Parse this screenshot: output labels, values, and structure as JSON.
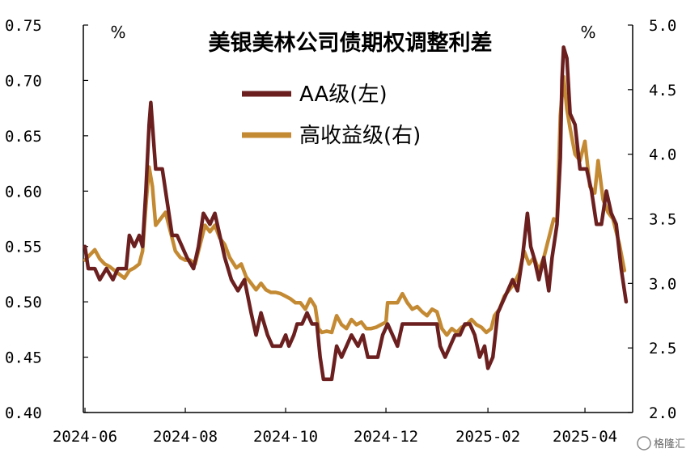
{
  "chart_data": {
    "type": "line",
    "title": "美银美林公司债期权调整利差",
    "left_axis": {
      "unit": "%",
      "ylim": [
        0.4,
        0.75
      ],
      "ticks": [
        "0.40",
        "0.45",
        "0.50",
        "0.55",
        "0.60",
        "0.65",
        "0.70",
        "0.75"
      ]
    },
    "right_axis": {
      "unit": "%",
      "ylim": [
        2.0,
        5.0
      ],
      "ticks": [
        "2.0",
        "2.5",
        "3.0",
        "3.5",
        "4.0",
        "4.5",
        "5.0"
      ]
    },
    "x_ticks": [
      "2024-06",
      "2024-08",
      "2024-10",
      "2024-12",
      "2025-02",
      "2025-04"
    ],
    "x_range": [
      "2024-05-31",
      "2025-04-30"
    ],
    "legend_position": "top-center",
    "grid": false,
    "series": [
      {
        "name": "AA级(左)",
        "axis": "left",
        "color": "#6b1f1f",
        "points": [
          [
            "2024-06-01",
            0.55
          ],
          [
            "2024-06-03",
            0.53
          ],
          [
            "2024-06-07",
            0.53
          ],
          [
            "2024-06-10",
            0.52
          ],
          [
            "2024-06-14",
            0.53
          ],
          [
            "2024-06-18",
            0.52
          ],
          [
            "2024-06-21",
            0.53
          ],
          [
            "2024-06-26",
            0.53
          ],
          [
            "2024-06-28",
            0.56
          ],
          [
            "2024-07-01",
            0.55
          ],
          [
            "2024-07-04",
            0.56
          ],
          [
            "2024-07-06",
            0.55
          ],
          [
            "2024-07-08",
            0.6
          ],
          [
            "2024-07-10",
            0.66
          ],
          [
            "2024-07-11",
            0.68
          ],
          [
            "2024-07-12",
            0.66
          ],
          [
            "2024-07-14",
            0.62
          ],
          [
            "2024-07-18",
            0.62
          ],
          [
            "2024-07-21",
            0.59
          ],
          [
            "2024-07-24",
            0.56
          ],
          [
            "2024-07-27",
            0.56
          ],
          [
            "2024-07-30",
            0.55
          ],
          [
            "2024-08-02",
            0.54
          ],
          [
            "2024-08-06",
            0.53
          ],
          [
            "2024-08-09",
            0.55
          ],
          [
            "2024-08-12",
            0.58
          ],
          [
            "2024-08-16",
            0.57
          ],
          [
            "2024-08-19",
            0.58
          ],
          [
            "2024-08-22",
            0.56
          ],
          [
            "2024-08-25",
            0.54
          ],
          [
            "2024-08-29",
            0.52
          ],
          [
            "2024-09-02",
            0.51
          ],
          [
            "2024-09-06",
            0.52
          ],
          [
            "2024-09-10",
            0.49
          ],
          [
            "2024-09-13",
            0.47
          ],
          [
            "2024-09-16",
            0.49
          ],
          [
            "2024-09-20",
            0.47
          ],
          [
            "2024-09-23",
            0.46
          ],
          [
            "2024-09-28",
            0.46
          ],
          [
            "2024-10-01",
            0.47
          ],
          [
            "2024-10-03",
            0.46
          ],
          [
            "2024-10-06",
            0.47
          ],
          [
            "2024-10-08",
            0.48
          ],
          [
            "2024-10-11",
            0.48
          ],
          [
            "2024-10-14",
            0.49
          ],
          [
            "2024-10-17",
            0.48
          ],
          [
            "2024-10-20",
            0.48
          ],
          [
            "2024-10-22",
            0.45
          ],
          [
            "2024-10-24",
            0.43
          ],
          [
            "2024-10-29",
            0.43
          ],
          [
            "2024-11-01",
            0.46
          ],
          [
            "2024-11-04",
            0.45
          ],
          [
            "2024-11-07",
            0.46
          ],
          [
            "2024-11-10",
            0.47
          ],
          [
            "2024-11-14",
            0.46
          ],
          [
            "2024-11-17",
            0.47
          ],
          [
            "2024-11-20",
            0.45
          ],
          [
            "2024-11-26",
            0.45
          ],
          [
            "2024-11-29",
            0.47
          ],
          [
            "2024-12-02",
            0.48
          ],
          [
            "2024-12-05",
            0.47
          ],
          [
            "2024-12-08",
            0.46
          ],
          [
            "2024-12-11",
            0.48
          ],
          [
            "2024-12-16",
            0.48
          ],
          [
            "2024-12-21",
            0.48
          ],
          [
            "2024-12-26",
            0.48
          ],
          [
            "2025-01-01",
            0.48
          ],
          [
            "2025-01-03",
            0.46
          ],
          [
            "2025-01-06",
            0.45
          ],
          [
            "2025-01-09",
            0.46
          ],
          [
            "2025-01-12",
            0.47
          ],
          [
            "2025-01-15",
            0.47
          ],
          [
            "2025-01-18",
            0.48
          ],
          [
            "2025-01-21",
            0.48
          ],
          [
            "2025-01-24",
            0.47
          ],
          [
            "2025-01-27",
            0.45
          ],
          [
            "2025-01-30",
            0.46
          ],
          [
            "2025-02-01",
            0.44
          ],
          [
            "2025-02-04",
            0.45
          ],
          [
            "2025-02-07",
            0.49
          ],
          [
            "2025-02-10",
            0.5
          ],
          [
            "2025-02-13",
            0.51
          ],
          [
            "2025-02-16",
            0.52
          ],
          [
            "2025-02-19",
            0.51
          ],
          [
            "2025-02-22",
            0.54
          ],
          [
            "2025-02-25",
            0.58
          ],
          [
            "2025-02-27",
            0.55
          ],
          [
            "2025-03-01",
            0.54
          ],
          [
            "2025-03-04",
            0.52
          ],
          [
            "2025-03-07",
            0.54
          ],
          [
            "2025-03-10",
            0.51
          ],
          [
            "2025-03-12",
            0.54
          ],
          [
            "2025-03-15",
            0.57
          ],
          [
            "2025-03-17",
            0.63
          ],
          [
            "2025-03-18",
            0.7
          ],
          [
            "2025-03-19",
            0.73
          ],
          [
            "2025-03-21",
            0.72
          ],
          [
            "2025-03-23",
            0.67
          ],
          [
            "2025-03-26",
            0.66
          ],
          [
            "2025-03-29",
            0.62
          ],
          [
            "2025-04-02",
            0.62
          ],
          [
            "2025-04-05",
            0.6
          ],
          [
            "2025-04-08",
            0.57
          ],
          [
            "2025-04-11",
            0.57
          ],
          [
            "2025-04-14",
            0.6
          ],
          [
            "2025-04-17",
            0.58
          ],
          [
            "2025-04-20",
            0.57
          ],
          [
            "2025-04-23",
            0.53
          ],
          [
            "2025-04-26",
            0.5
          ]
        ]
      },
      {
        "name": "高收益级(右)",
        "axis": "right",
        "color": "#c48a33",
        "points": [
          [
            "2024-06-01",
            3.18
          ],
          [
            "2024-06-04",
            3.22
          ],
          [
            "2024-06-07",
            3.26
          ],
          [
            "2024-06-10",
            3.19
          ],
          [
            "2024-06-13",
            3.15
          ],
          [
            "2024-06-16",
            3.13
          ],
          [
            "2024-06-19",
            3.1
          ],
          [
            "2024-06-22",
            3.07
          ],
          [
            "2024-06-25",
            3.04
          ],
          [
            "2024-06-28",
            3.1
          ],
          [
            "2024-07-01",
            3.12
          ],
          [
            "2024-07-04",
            3.15
          ],
          [
            "2024-07-06",
            3.25
          ],
          [
            "2024-07-08",
            3.6
          ],
          [
            "2024-07-10",
            3.9
          ],
          [
            "2024-07-12",
            3.75
          ],
          [
            "2024-07-14",
            3.45
          ],
          [
            "2024-07-17",
            3.5
          ],
          [
            "2024-07-20",
            3.55
          ],
          [
            "2024-07-23",
            3.4
          ],
          [
            "2024-07-26",
            3.25
          ],
          [
            "2024-07-29",
            3.2
          ],
          [
            "2024-08-01",
            3.18
          ],
          [
            "2024-08-04",
            3.18
          ],
          [
            "2024-08-07",
            3.15
          ],
          [
            "2024-08-10",
            3.3
          ],
          [
            "2024-08-13",
            3.45
          ],
          [
            "2024-08-16",
            3.4
          ],
          [
            "2024-08-19",
            3.45
          ],
          [
            "2024-08-22",
            3.35
          ],
          [
            "2024-08-25",
            3.3
          ],
          [
            "2024-08-28",
            3.2
          ],
          [
            "2024-09-01",
            3.12
          ],
          [
            "2024-09-04",
            3.15
          ],
          [
            "2024-09-07",
            3.05
          ],
          [
            "2024-09-10",
            3.0
          ],
          [
            "2024-09-13",
            2.95
          ],
          [
            "2024-09-16",
            3.0
          ],
          [
            "2024-09-19",
            2.95
          ],
          [
            "2024-09-22",
            2.93
          ],
          [
            "2024-09-25",
            2.93
          ],
          [
            "2024-09-28",
            2.92
          ],
          [
            "2024-10-01",
            2.9
          ],
          [
            "2024-10-04",
            2.88
          ],
          [
            "2024-10-07",
            2.85
          ],
          [
            "2024-10-10",
            2.85
          ],
          [
            "2024-10-13",
            2.8
          ],
          [
            "2024-10-16",
            2.88
          ],
          [
            "2024-10-19",
            2.82
          ],
          [
            "2024-10-21",
            2.65
          ],
          [
            "2024-10-23",
            2.62
          ],
          [
            "2024-10-26",
            2.63
          ],
          [
            "2024-10-29",
            2.62
          ],
          [
            "2024-11-01",
            2.75
          ],
          [
            "2024-11-04",
            2.68
          ],
          [
            "2024-11-07",
            2.65
          ],
          [
            "2024-11-10",
            2.72
          ],
          [
            "2024-11-13",
            2.68
          ],
          [
            "2024-11-16",
            2.7
          ],
          [
            "2024-11-19",
            2.65
          ],
          [
            "2024-11-22",
            2.65
          ],
          [
            "2024-11-25",
            2.66
          ],
          [
            "2024-11-28",
            2.68
          ],
          [
            "2024-12-01",
            2.7
          ],
          [
            "2024-12-02",
            2.85
          ],
          [
            "2024-12-05",
            2.85
          ],
          [
            "2024-12-08",
            2.85
          ],
          [
            "2024-12-11",
            2.92
          ],
          [
            "2024-12-14",
            2.85
          ],
          [
            "2024-12-17",
            2.8
          ],
          [
            "2024-12-20",
            2.82
          ],
          [
            "2024-12-23",
            2.78
          ],
          [
            "2024-12-26",
            2.75
          ],
          [
            "2024-12-29",
            2.8
          ],
          [
            "2025-01-01",
            2.78
          ],
          [
            "2025-01-04",
            2.65
          ],
          [
            "2025-01-07",
            2.6
          ],
          [
            "2025-01-10",
            2.65
          ],
          [
            "2025-01-13",
            2.62
          ],
          [
            "2025-01-16",
            2.66
          ],
          [
            "2025-01-19",
            2.68
          ],
          [
            "2025-01-22",
            2.72
          ],
          [
            "2025-01-25",
            2.68
          ],
          [
            "2025-01-28",
            2.66
          ],
          [
            "2025-01-31",
            2.62
          ],
          [
            "2025-02-03",
            2.65
          ],
          [
            "2025-02-05",
            2.75
          ],
          [
            "2025-02-08",
            2.8
          ],
          [
            "2025-02-11",
            2.9
          ],
          [
            "2025-02-14",
            2.95
          ],
          [
            "2025-02-17",
            3.0
          ],
          [
            "2025-02-20",
            3.08
          ],
          [
            "2025-02-23",
            3.25
          ],
          [
            "2025-02-26",
            3.15
          ],
          [
            "2025-03-01",
            3.2
          ],
          [
            "2025-03-04",
            3.1
          ],
          [
            "2025-03-07",
            3.2
          ],
          [
            "2025-03-10",
            3.35
          ],
          [
            "2025-03-13",
            3.5
          ],
          [
            "2025-03-15",
            3.48
          ],
          [
            "2025-03-17",
            4.3
          ],
          [
            "2025-03-19",
            4.6
          ],
          [
            "2025-03-21",
            4.35
          ],
          [
            "2025-03-23",
            4.2
          ],
          [
            "2025-03-26",
            4.0
          ],
          [
            "2025-03-29",
            3.95
          ],
          [
            "2025-04-01",
            4.1
          ],
          [
            "2025-04-04",
            3.75
          ],
          [
            "2025-04-07",
            3.7
          ],
          [
            "2025-04-09",
            3.95
          ],
          [
            "2025-04-12",
            3.65
          ],
          [
            "2025-04-15",
            3.55
          ],
          [
            "2025-04-18",
            3.5
          ],
          [
            "2025-04-22",
            3.3
          ],
          [
            "2025-04-25",
            3.1
          ]
        ]
      }
    ]
  },
  "watermark": "格隆汇"
}
